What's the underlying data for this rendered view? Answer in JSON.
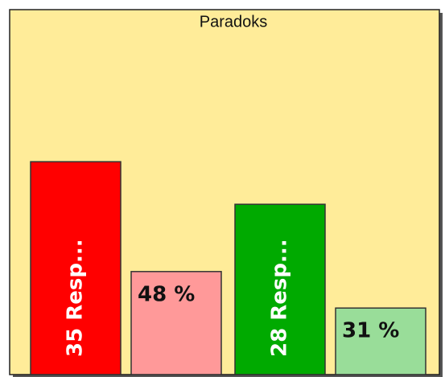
{
  "chart_data": {
    "type": "bar",
    "title": "Paradoks",
    "values": [
      35,
      48,
      28,
      31
    ],
    "value_labels": [
      "35 Resp...",
      "48 %",
      "28 Resp...",
      "31 %"
    ],
    "colors": [
      "#ff0000",
      "#ff9999",
      "#00aa00",
      "#99dd99"
    ],
    "axes": [
      "y",
      "y2",
      "y",
      "y2"
    ],
    "ylim": [
      0,
      60
    ],
    "y2lim": [
      0,
      170
    ]
  }
}
